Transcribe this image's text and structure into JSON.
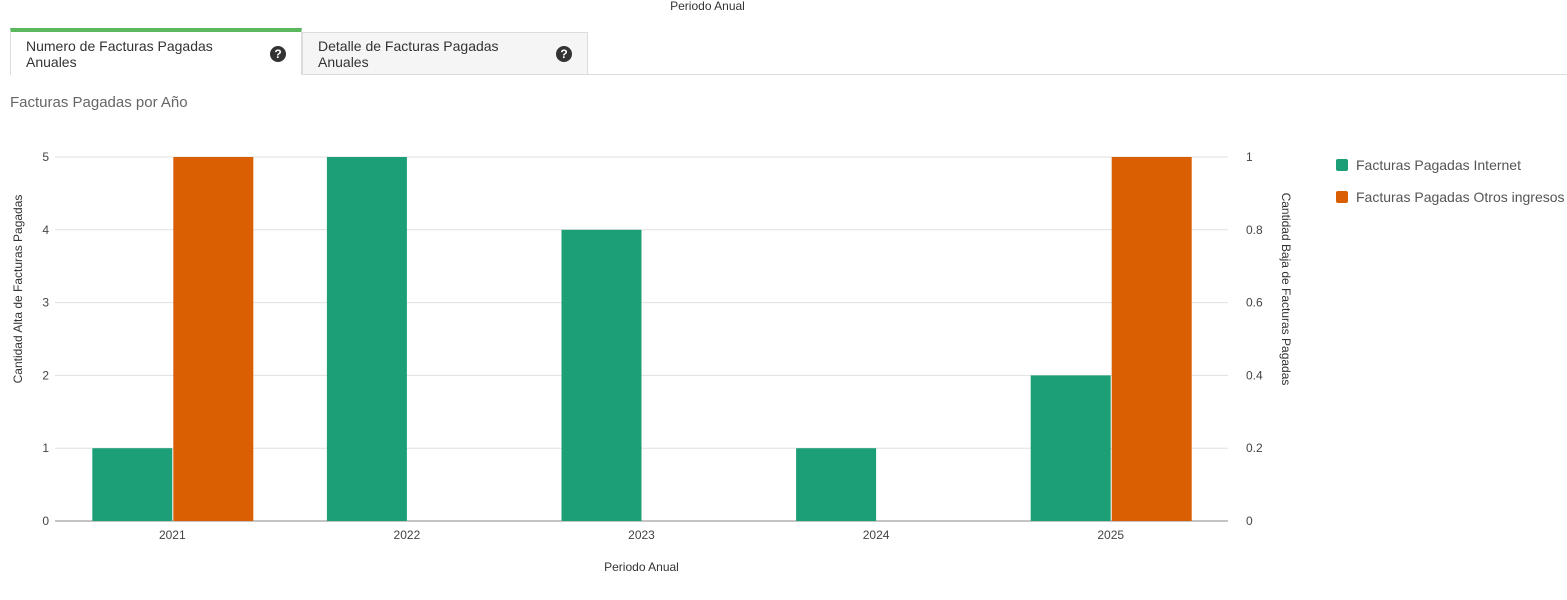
{
  "header": {
    "top_caption": "Periodo Anual"
  },
  "tabs": [
    {
      "label": "Numero de Facturas Pagadas Anuales",
      "help_icon": "question-circle-icon"
    },
    {
      "label": "Detalle de Facturas Pagadas Anuales",
      "help_icon": "question-circle-icon"
    }
  ],
  "colors": {
    "internet": "#1c9e77",
    "otros": "#d95f02",
    "active_tab": "#5cb85c"
  },
  "chart_data": {
    "type": "bar",
    "title": "Facturas Pagadas por Año",
    "xlabel": "Periodo Anual",
    "ylabel": "Cantidad Alta de Facturas Pagadas",
    "ylabel_right": "Cantidad Baja de Facturas Pagadas",
    "categories": [
      "2021",
      "2022",
      "2023",
      "2024",
      "2025"
    ],
    "ylim": [
      0,
      5
    ],
    "ylim_right": [
      0,
      1
    ],
    "yticks": [
      "0",
      "1",
      "2",
      "3",
      "4",
      "5"
    ],
    "yticks_right": [
      "0",
      "0.2",
      "0.4",
      "0.6",
      "0.8",
      "1"
    ],
    "grid": true,
    "legend_position": "right",
    "series": [
      {
        "name": "Facturas Pagadas Internet",
        "axis": "left",
        "values": [
          1,
          5,
          4,
          1,
          2
        ]
      },
      {
        "name": "Facturas Pagadas Otros ingresos",
        "axis": "right",
        "values": [
          1,
          0,
          0,
          0,
          1
        ]
      }
    ]
  }
}
